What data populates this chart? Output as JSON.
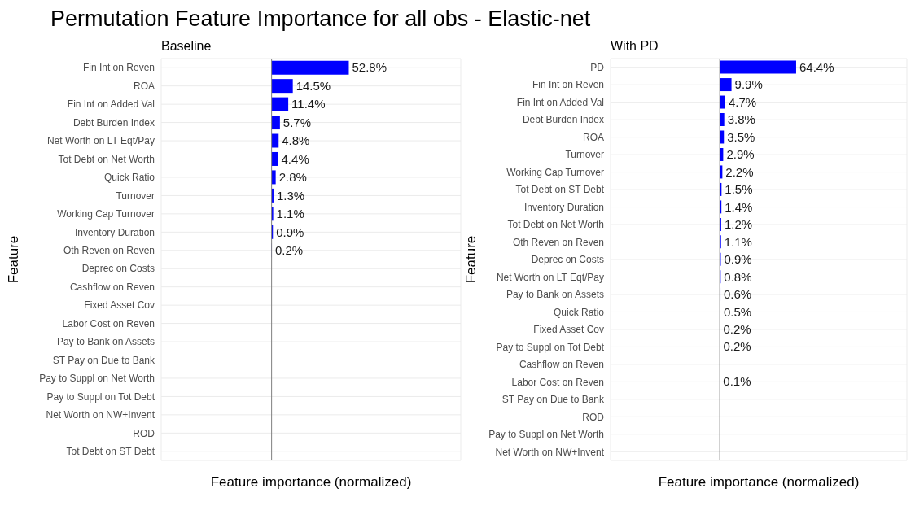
{
  "chart_data": [
    {
      "type": "bar",
      "orientation": "horizontal",
      "title": "Permutation Feature Importance for all obs - Elastic-net",
      "subtitle": "Baseline",
      "xlabel": "Feature importance (normalized)",
      "ylabel": "Feature",
      "categories": [
        "Fin Int on Reven",
        "ROA",
        "Fin Int on Added Val",
        "Debt Burden Index",
        "Net Worth on LT Eqt/Pay",
        "Tot Debt on Net Worth",
        "Quick Ratio",
        "Turnover",
        "Working Cap Turnover",
        "Inventory Duration",
        "Oth Reven on Reven",
        "Deprec on Costs",
        "Cashflow on Reven",
        "Fixed Asset Cov",
        "Labor Cost on Reven",
        "Pay to Bank on Assets",
        "ST Pay on Due to Bank",
        "Pay to Suppl on Net Worth",
        "Pay to Suppl on Tot Debt",
        "Net Worth on NW+Invent",
        "ROD",
        "Tot Debt on ST Debt"
      ],
      "values": [
        52.8,
        14.5,
        11.4,
        5.7,
        4.8,
        4.4,
        2.8,
        1.3,
        1.1,
        0.9,
        0.2,
        null,
        null,
        null,
        null,
        null,
        null,
        null,
        null,
        null,
        null,
        null
      ],
      "value_labels": [
        "52.8%",
        "14.5%",
        "11.4%",
        "5.7%",
        "4.8%",
        "4.4%",
        "2.8%",
        "1.3%",
        "1.1%",
        "0.9%",
        "0.2%",
        null,
        null,
        null,
        null,
        null,
        null,
        null,
        null,
        null,
        null,
        null
      ],
      "color": "#0000ff",
      "grid": true,
      "tick_labels": "y",
      "ref_lines": [
        {
          "axis": "x",
          "value": 0,
          "color": "#7f7f7f"
        }
      ]
    },
    {
      "type": "bar",
      "orientation": "horizontal",
      "subtitle": "With PD",
      "xlabel": "Feature importance (normalized)",
      "ylabel": "Feature",
      "categories": [
        "PD",
        "Fin Int on Reven",
        "Fin Int on Added Val",
        "Debt Burden Index",
        "ROA",
        "Turnover",
        "Working Cap Turnover",
        "Tot Debt on ST Debt",
        "Inventory Duration",
        "Tot Debt on Net Worth",
        "Oth Reven on Reven",
        "Deprec on Costs",
        "Net Worth on LT Eqt/Pay",
        "Pay to Bank on Assets",
        "Quick Ratio",
        "Fixed Asset Cov",
        "Pay to Suppl on Tot Debt",
        "Cashflow on Reven",
        "Labor Cost on Reven",
        "ST Pay on Due to Bank",
        "ROD",
        "Pay to Suppl on Net Worth",
        "Net Worth on NW+Invent"
      ],
      "values": [
        64.4,
        9.9,
        4.7,
        3.8,
        3.5,
        2.9,
        2.2,
        1.5,
        1.4,
        1.2,
        1.1,
        0.9,
        0.8,
        0.6,
        0.5,
        0.2,
        0.2,
        null,
        0.1,
        null,
        null,
        null,
        null
      ],
      "value_labels": [
        "64.4%",
        "9.9%",
        "4.7%",
        "3.8%",
        "3.5%",
        "2.9%",
        "2.2%",
        "1.5%",
        "1.4%",
        "1.2%",
        "1.1%",
        "0.9%",
        "0.8%",
        "0.6%",
        "0.5%",
        "0.2%",
        "0.2%",
        null,
        "0.1%",
        null,
        null,
        null,
        null
      ],
      "color": "#0000ff",
      "grid": true,
      "tick_labels": "y",
      "ref_lines": [
        {
          "axis": "x",
          "value": 0,
          "color": "#7f7f7f"
        }
      ]
    }
  ]
}
